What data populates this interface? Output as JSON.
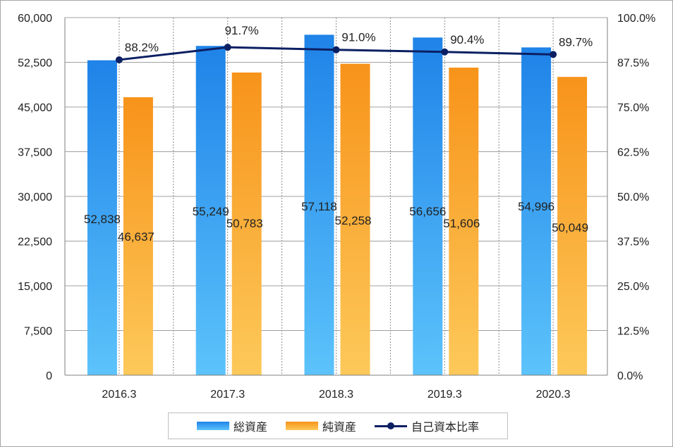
{
  "chart_data": {
    "type": "bar",
    "categories": [
      "2016.3",
      "2017.3",
      "2018.3",
      "2019.3",
      "2020.3"
    ],
    "series": [
      {
        "name": "総資産",
        "kind": "bar",
        "axis": "left",
        "values": [
          52838,
          55249,
          57118,
          56656,
          54996
        ],
        "labels": [
          "52,838",
          "55,249",
          "57,118",
          "56,656",
          "54,996"
        ],
        "color": "#2b8ae6"
      },
      {
        "name": "純資産",
        "kind": "bar",
        "axis": "left",
        "values": [
          46637,
          50783,
          52258,
          51606,
          50049
        ],
        "labels": [
          "46,637",
          "50,783",
          "52,258",
          "51,606",
          "50,049"
        ],
        "color": "#f7941d"
      },
      {
        "name": "自己資本比率",
        "kind": "line",
        "axis": "right",
        "values": [
          88.2,
          91.7,
          91.0,
          90.4,
          89.7
        ],
        "labels": [
          "88.2%",
          "91.7%",
          "91.0%",
          "90.4%",
          "89.7%"
        ],
        "color": "#0b1f63"
      }
    ],
    "y_left": {
      "min": 0,
      "max": 60000,
      "ticks": [
        "0",
        "7,500",
        "15,000",
        "22,500",
        "30,000",
        "37,500",
        "45,000",
        "52,500",
        "60,000"
      ]
    },
    "y_right": {
      "min": 0,
      "max": 100,
      "ticks": [
        "0.0%",
        "12.5%",
        "25.0%",
        "37.5%",
        "50.0%",
        "62.5%",
        "75.0%",
        "87.5%",
        "100.0%"
      ]
    },
    "grid": true,
    "legend_position": "bottom",
    "title": "",
    "xlabel": "",
    "ylabel": ""
  }
}
